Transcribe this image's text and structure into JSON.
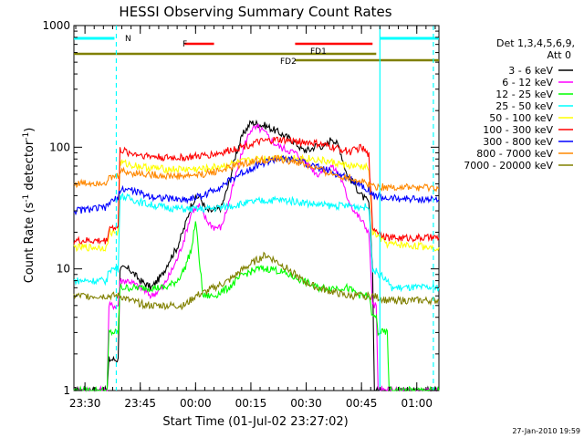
{
  "chart_data": {
    "type": "line",
    "title": "HESSI Observing Summary Count Rates",
    "xlabel": "Start Time (01-Jul-02 23:27:02)",
    "ylabel_main": "Count Rate (s",
    "ylabel_sup1": "-1",
    "ylabel_mid": " detector",
    "ylabel_sup2": "-1",
    "ylabel_end": ")",
    "y_scale": "log",
    "ylim": [
      1,
      1000
    ],
    "xlim": [
      0,
      99
    ],
    "x_unit": "minutes since 23:27:02",
    "y_ticks": [
      {
        "value": 1,
        "label": "1"
      },
      {
        "value": 10,
        "label": "10"
      },
      {
        "value": 100,
        "label": "100"
      },
      {
        "value": 1000,
        "label": "1000"
      }
    ],
    "x_ticks": [
      {
        "value": 3,
        "label": "23:30"
      },
      {
        "value": 18,
        "label": "23:45"
      },
      {
        "value": 33,
        "label": "00:00"
      },
      {
        "value": 48,
        "label": "00:15"
      },
      {
        "value": 63,
        "label": "00:30"
      },
      {
        "value": 78,
        "label": "00:45"
      },
      {
        "value": 93,
        "label": "01:00"
      }
    ],
    "legend": {
      "placement": "right",
      "header_line1": "Det 1,3,4,5,6,9,",
      "header_line2": "Att 0"
    },
    "series": [
      {
        "name": "3 - 6 keV",
        "color": "#000000",
        "points": [
          [
            0,
            1
          ],
          [
            9,
            1
          ],
          [
            9.5,
            1.8
          ],
          [
            12,
            1.8
          ],
          [
            12.5,
            10
          ],
          [
            15,
            10
          ],
          [
            18,
            8
          ],
          [
            21,
            7
          ],
          [
            24,
            9
          ],
          [
            26,
            12
          ],
          [
            28,
            15
          ],
          [
            30,
            22
          ],
          [
            32,
            35
          ],
          [
            34,
            40
          ],
          [
            36,
            30
          ],
          [
            38,
            30
          ],
          [
            40,
            32
          ],
          [
            42,
            50
          ],
          [
            44,
            90
          ],
          [
            46,
            130
          ],
          [
            48,
            160
          ],
          [
            50,
            155
          ],
          [
            52,
            150
          ],
          [
            54,
            140
          ],
          [
            56,
            130
          ],
          [
            58,
            120
          ],
          [
            60,
            110
          ],
          [
            62,
            95
          ],
          [
            64,
            95
          ],
          [
            66,
            105
          ],
          [
            68,
            100
          ],
          [
            70,
            120
          ],
          [
            72,
            100
          ],
          [
            74,
            60
          ],
          [
            76,
            50
          ],
          [
            78,
            40
          ],
          [
            80,
            35
          ],
          [
            81,
            10
          ],
          [
            81.5,
            1
          ],
          [
            99,
            1
          ]
        ]
      },
      {
        "name": "6 - 12 keV",
        "color": "#ff00ff",
        "points": [
          [
            0,
            1
          ],
          [
            9,
            1
          ],
          [
            9.5,
            5
          ],
          [
            12,
            5
          ],
          [
            12.5,
            8
          ],
          [
            15,
            8
          ],
          [
            18,
            7
          ],
          [
            21,
            6
          ],
          [
            24,
            7
          ],
          [
            26,
            9
          ],
          [
            28,
            12
          ],
          [
            30,
            18
          ],
          [
            32,
            30
          ],
          [
            34,
            33
          ],
          [
            36,
            25
          ],
          [
            38,
            22
          ],
          [
            40,
            22
          ],
          [
            42,
            35
          ],
          [
            44,
            60
          ],
          [
            46,
            100
          ],
          [
            48,
            140
          ],
          [
            50,
            145
          ],
          [
            52,
            130
          ],
          [
            54,
            110
          ],
          [
            56,
            100
          ],
          [
            58,
            95
          ],
          [
            60,
            90
          ],
          [
            62,
            80
          ],
          [
            64,
            70
          ],
          [
            66,
            60
          ],
          [
            68,
            65
          ],
          [
            70,
            70
          ],
          [
            72,
            60
          ],
          [
            74,
            40
          ],
          [
            76,
            30
          ],
          [
            78,
            25
          ],
          [
            80,
            20
          ],
          [
            81,
            5
          ],
          [
            82,
            5
          ],
          [
            82.5,
            1
          ],
          [
            99,
            1
          ]
        ]
      },
      {
        "name": "12 - 25 keV",
        "color": "#00ff00",
        "points": [
          [
            0,
            1
          ],
          [
            9,
            1
          ],
          [
            9.5,
            3
          ],
          [
            12,
            3
          ],
          [
            12.5,
            7
          ],
          [
            15,
            7
          ],
          [
            20,
            7
          ],
          [
            25,
            7
          ],
          [
            28,
            8
          ],
          [
            30,
            10
          ],
          [
            32,
            15
          ],
          [
            33,
            25
          ],
          [
            34,
            12
          ],
          [
            35,
            6
          ],
          [
            38,
            6
          ],
          [
            42,
            7
          ],
          [
            46,
            9
          ],
          [
            50,
            10
          ],
          [
            54,
            10
          ],
          [
            58,
            9
          ],
          [
            62,
            8
          ],
          [
            66,
            7
          ],
          [
            70,
            7
          ],
          [
            74,
            7
          ],
          [
            78,
            6
          ],
          [
            80,
            6
          ],
          [
            81,
            4
          ],
          [
            82,
            4
          ],
          [
            82.5,
            3
          ],
          [
            85,
            3
          ],
          [
            85.5,
            1
          ],
          [
            99,
            1
          ]
        ]
      },
      {
        "name": "25 - 50 keV",
        "color": "#00ffff",
        "points": [
          [
            0,
            8
          ],
          [
            9,
            8
          ],
          [
            9.5,
            10
          ],
          [
            12,
            10
          ],
          [
            12.5,
            40
          ],
          [
            15,
            38
          ],
          [
            20,
            34
          ],
          [
            25,
            32
          ],
          [
            30,
            31
          ],
          [
            35,
            31
          ],
          [
            40,
            32
          ],
          [
            45,
            34
          ],
          [
            50,
            36
          ],
          [
            55,
            37
          ],
          [
            60,
            36
          ],
          [
            65,
            34
          ],
          [
            70,
            33
          ],
          [
            75,
            33
          ],
          [
            80,
            32
          ],
          [
            81,
            10
          ],
          [
            85,
            8
          ],
          [
            86,
            7
          ],
          [
            99,
            7
          ]
        ]
      },
      {
        "name": "50 - 100 keV",
        "color": "#ffff00",
        "points": [
          [
            0,
            15
          ],
          [
            9,
            15
          ],
          [
            9.5,
            20
          ],
          [
            12,
            20
          ],
          [
            12.5,
            75
          ],
          [
            15,
            72
          ],
          [
            20,
            68
          ],
          [
            25,
            66
          ],
          [
            30,
            66
          ],
          [
            35,
            66
          ],
          [
            40,
            70
          ],
          [
            45,
            75
          ],
          [
            50,
            80
          ],
          [
            55,
            82
          ],
          [
            60,
            82
          ],
          [
            65,
            80
          ],
          [
            70,
            75
          ],
          [
            75,
            70
          ],
          [
            80,
            68
          ],
          [
            81,
            20
          ],
          [
            85,
            16
          ],
          [
            99,
            15
          ]
        ]
      },
      {
        "name": "100 - 300 keV",
        "color": "#ff0000",
        "points": [
          [
            0,
            17
          ],
          [
            9,
            17
          ],
          [
            9.5,
            22
          ],
          [
            12,
            22
          ],
          [
            12.5,
            95
          ],
          [
            15,
            90
          ],
          [
            20,
            85
          ],
          [
            25,
            82
          ],
          [
            30,
            82
          ],
          [
            35,
            85
          ],
          [
            40,
            90
          ],
          [
            45,
            100
          ],
          [
            50,
            110
          ],
          [
            55,
            115
          ],
          [
            60,
            112
          ],
          [
            65,
            108
          ],
          [
            70,
            100
          ],
          [
            75,
            92
          ],
          [
            78,
            100
          ],
          [
            80,
            85
          ],
          [
            81,
            22
          ],
          [
            85,
            18
          ],
          [
            99,
            18
          ]
        ]
      },
      {
        "name": "300 - 800 keV",
        "color": "#0000ff",
        "points": [
          [
            0,
            30
          ],
          [
            9,
            32
          ],
          [
            9.5,
            35
          ],
          [
            12,
            38
          ],
          [
            12.5,
            45
          ],
          [
            15,
            45
          ],
          [
            20,
            40
          ],
          [
            25,
            38
          ],
          [
            30,
            37
          ],
          [
            35,
            40
          ],
          [
            40,
            48
          ],
          [
            45,
            60
          ],
          [
            50,
            72
          ],
          [
            55,
            80
          ],
          [
            60,
            78
          ],
          [
            65,
            70
          ],
          [
            70,
            62
          ],
          [
            75,
            55
          ],
          [
            80,
            45
          ],
          [
            81,
            40
          ],
          [
            85,
            38
          ],
          [
            99,
            37
          ]
        ]
      },
      {
        "name": "800 - 7000 keV",
        "color": "#ff8800",
        "points": [
          [
            0,
            50
          ],
          [
            9,
            52
          ],
          [
            9.5,
            55
          ],
          [
            12,
            58
          ],
          [
            12.5,
            64
          ],
          [
            15,
            62
          ],
          [
            20,
            60
          ],
          [
            25,
            58
          ],
          [
            30,
            58
          ],
          [
            35,
            60
          ],
          [
            40,
            65
          ],
          [
            45,
            72
          ],
          [
            50,
            78
          ],
          [
            55,
            80
          ],
          [
            60,
            76
          ],
          [
            65,
            68
          ],
          [
            70,
            60
          ],
          [
            75,
            56
          ],
          [
            80,
            50
          ],
          [
            81,
            48
          ],
          [
            85,
            47
          ],
          [
            99,
            46
          ]
        ]
      },
      {
        "name": "7000 - 20000 keV",
        "color": "#808000",
        "points": [
          [
            0,
            6
          ],
          [
            9,
            6
          ],
          [
            9.5,
            6
          ],
          [
            12,
            6
          ],
          [
            12.5,
            6
          ],
          [
            15,
            5.5
          ],
          [
            20,
            5
          ],
          [
            25,
            5
          ],
          [
            30,
            5
          ],
          [
            33,
            6
          ],
          [
            36,
            6.5
          ],
          [
            38,
            7
          ],
          [
            42,
            8
          ],
          [
            46,
            10
          ],
          [
            50,
            12
          ],
          [
            52,
            13
          ],
          [
            54,
            12
          ],
          [
            58,
            10
          ],
          [
            62,
            8
          ],
          [
            66,
            7
          ],
          [
            70,
            6.5
          ],
          [
            74,
            6
          ],
          [
            78,
            6
          ],
          [
            81,
            6
          ],
          [
            85,
            5.5
          ],
          [
            99,
            5.5
          ]
        ]
      }
    ],
    "flags": [
      {
        "label": "N",
        "color": "#00ffff",
        "segments": [
          [
            0,
            11
          ],
          [
            83,
            99
          ]
        ]
      },
      {
        "label": "F",
        "color": "#ff0000",
        "segments": [
          [
            30,
            38
          ],
          [
            60,
            81
          ]
        ]
      },
      {
        "label": "FD1",
        "color": "#808000",
        "segments": [
          [
            0,
            82
          ]
        ]
      },
      {
        "label": "FD2",
        "color": "#808000",
        "segments": [
          [
            60,
            99
          ]
        ]
      }
    ],
    "vlines": [
      11.5,
      83,
      97.5
    ],
    "footer": "27-Jan-2010 19:59"
  }
}
